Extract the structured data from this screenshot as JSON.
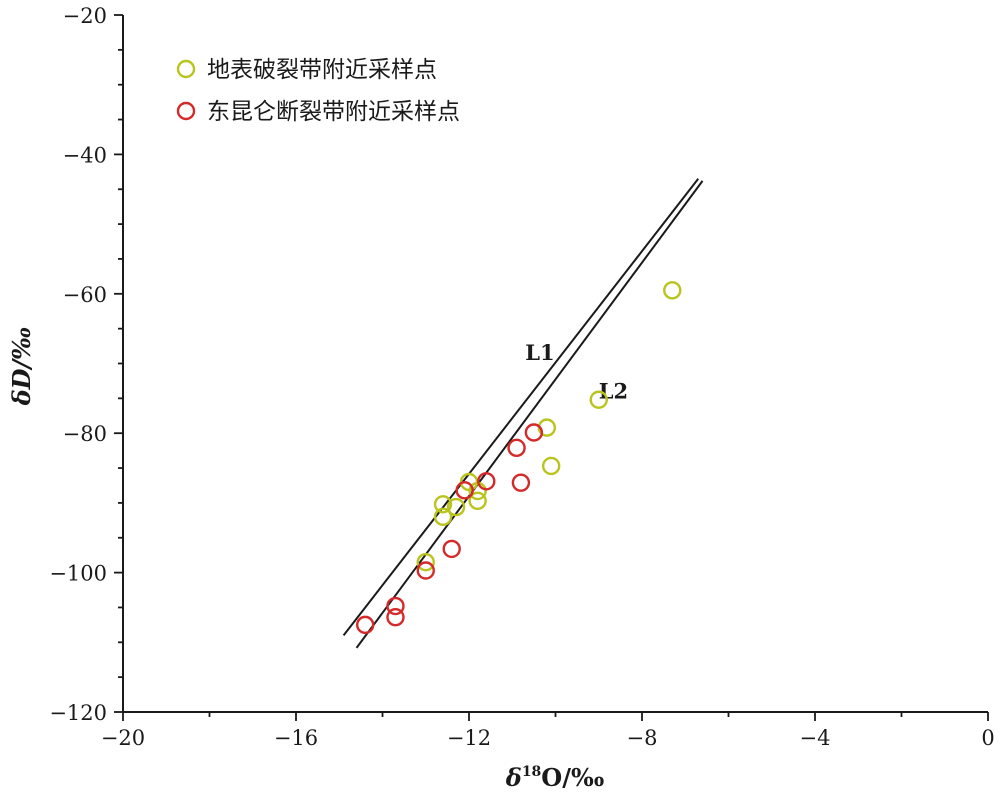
{
  "chart_data": {
    "type": "scatter",
    "xlabel": {
      "prefix": "δ",
      "sup": "18",
      "suffix": "O/‰"
    },
    "ylabel": "δD/‰",
    "xlim": [
      -20,
      0
    ],
    "ylim": [
      -120,
      -20
    ],
    "xticks": [
      -20,
      -16,
      -12,
      -8,
      -4,
      0
    ],
    "xtick_labels": [
      "−20",
      "−16",
      "−12",
      "−8",
      "−4",
      "0"
    ],
    "yticks": [
      -120,
      -100,
      -80,
      -60,
      -40,
      -20
    ],
    "ytick_labels": [
      "−120",
      "−100",
      "−80",
      "−60",
      "−40",
      "−20"
    ],
    "grid": false,
    "legend_position": "top-left",
    "series": [
      {
        "name": "地表破裂带附近采样点",
        "color": "#b9c41d",
        "marker": "open-circle",
        "points": [
          [
            -7.3,
            -59.5
          ],
          [
            -9.0,
            -75.2
          ],
          [
            -10.2,
            -79.2
          ],
          [
            -10.1,
            -84.7
          ],
          [
            -12.0,
            -87.0
          ],
          [
            -11.8,
            -88.3
          ],
          [
            -11.8,
            -89.7
          ],
          [
            -12.6,
            -90.2
          ],
          [
            -12.3,
            -90.6
          ],
          [
            -12.6,
            -92.0
          ],
          [
            -13.0,
            -98.5
          ]
        ]
      },
      {
        "name": "东昆仑断裂带附近采样点",
        "color": "#d42a2a",
        "marker": "open-circle",
        "points": [
          [
            -10.5,
            -79.9
          ],
          [
            -10.9,
            -82.1
          ],
          [
            -10.8,
            -87.1
          ],
          [
            -11.6,
            -86.9
          ],
          [
            -12.1,
            -88.2
          ],
          [
            -12.4,
            -96.6
          ],
          [
            -13.0,
            -99.7
          ],
          [
            -13.7,
            -104.8
          ],
          [
            -13.7,
            -106.4
          ],
          [
            -14.4,
            -107.5
          ]
        ]
      }
    ],
    "reference_lines": [
      {
        "label": "L1",
        "from": [
          -14.9,
          -109.0
        ],
        "to": [
          -6.7,
          -43.5
        ]
      },
      {
        "label": "L2",
        "from": [
          -14.6,
          -110.8
        ],
        "to": [
          -6.6,
          -43.8
        ]
      }
    ],
    "line_labels": [
      {
        "text": "L1",
        "at": [
          -10.7,
          -69.5
        ]
      },
      {
        "text": "L2",
        "at": [
          -9.0,
          -75.0
        ]
      }
    ]
  }
}
